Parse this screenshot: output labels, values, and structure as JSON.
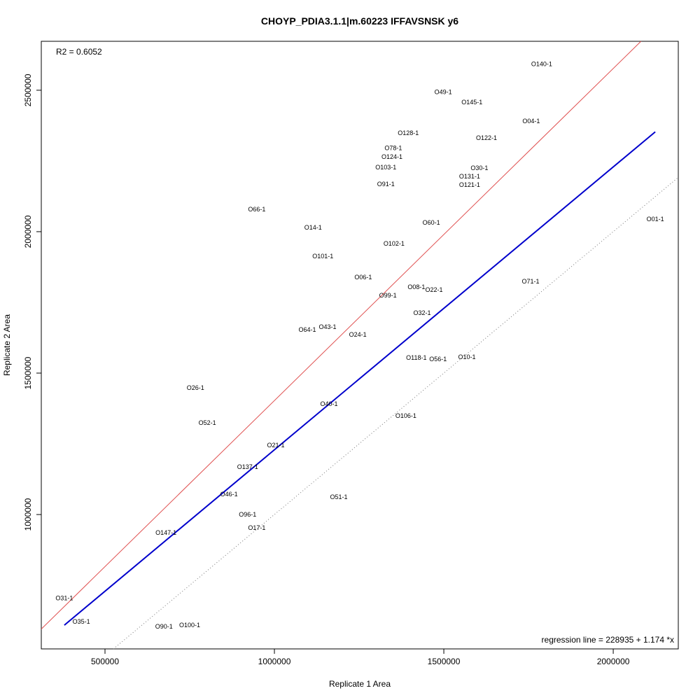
{
  "chart_data": {
    "type": "scatter",
    "title": "CHOYP_PDIA3.1.1|m.60223 IFFAVSNSK y6",
    "xlabel": "Replicate 1 Area",
    "ylabel": "Replicate 2 Area",
    "xlim": [
      312000,
      2192000
    ],
    "ylim": [
      525000,
      2673000
    ],
    "xticks": [
      500000,
      1000000,
      1500000,
      2000000
    ],
    "yticks": [
      1000000,
      1500000,
      2000000,
      2500000
    ],
    "grid": false,
    "annotations": {
      "r2": "R2 = 0.6052",
      "regression": "regression line = 228935 + 1.174 *x"
    },
    "lines": [
      {
        "name": "regression-line",
        "color": "#e05050",
        "intercept": 228935,
        "slope": 1.174,
        "style": "solid"
      },
      {
        "name": "offset-identity-line",
        "color": "#0000cc",
        "intercept": 228935,
        "slope": 1.0,
        "style": "solid",
        "xrange": [
          380000,
          2124000
        ]
      },
      {
        "name": "identity-line",
        "color": "#777777",
        "intercept": 0,
        "slope": 1.0,
        "style": "dotted"
      }
    ],
    "points": [
      {
        "label": "O140-1",
        "x": 1789000,
        "y": 2592000
      },
      {
        "label": "O49-1",
        "x": 1498000,
        "y": 2493000
      },
      {
        "label": "O145-1",
        "x": 1583000,
        "y": 2458000
      },
      {
        "label": "O04-1",
        "x": 1758000,
        "y": 2391000
      },
      {
        "label": "O128-1",
        "x": 1395000,
        "y": 2349000
      },
      {
        "label": "O122-1",
        "x": 1626000,
        "y": 2332000
      },
      {
        "label": "O78-1",
        "x": 1351000,
        "y": 2295000
      },
      {
        "label": "O124-1",
        "x": 1347000,
        "y": 2265000
      },
      {
        "label": "O103-1",
        "x": 1329000,
        "y": 2228000
      },
      {
        "label": "O30-1",
        "x": 1605000,
        "y": 2225000
      },
      {
        "label": "O131-1",
        "x": 1576000,
        "y": 2196000
      },
      {
        "label": "O121-1",
        "x": 1576000,
        "y": 2166000
      },
      {
        "label": "O91-1",
        "x": 1329000,
        "y": 2168000
      },
      {
        "label": "O66-1",
        "x": 948000,
        "y": 2079000
      },
      {
        "label": "O01-1",
        "x": 2124000,
        "y": 2045000
      },
      {
        "label": "O60-1",
        "x": 1463000,
        "y": 2032000
      },
      {
        "label": "O14-1",
        "x": 1114000,
        "y": 2015000
      },
      {
        "label": "O102-1",
        "x": 1353000,
        "y": 1958000
      },
      {
        "label": "O101-1",
        "x": 1143000,
        "y": 1913000
      },
      {
        "label": "O06-1",
        "x": 1262000,
        "y": 1839000
      },
      {
        "label": "O71-1",
        "x": 1756000,
        "y": 1824000
      },
      {
        "label": "O08-1",
        "x": 1419000,
        "y": 1804000
      },
      {
        "label": "O22-1",
        "x": 1471000,
        "y": 1795000
      },
      {
        "label": "O99-1",
        "x": 1335000,
        "y": 1775000
      },
      {
        "label": "O32-1",
        "x": 1436000,
        "y": 1713000
      },
      {
        "label": "O43-1",
        "x": 1157000,
        "y": 1663000
      },
      {
        "label": "O64-1",
        "x": 1097000,
        "y": 1653000
      },
      {
        "label": "O24-1",
        "x": 1246000,
        "y": 1636000
      },
      {
        "label": "O10-1",
        "x": 1568000,
        "y": 1557000
      },
      {
        "label": "O118-1",
        "x": 1419000,
        "y": 1554000
      },
      {
        "label": "O56-1",
        "x": 1483000,
        "y": 1550000
      },
      {
        "label": "O26-1",
        "x": 767000,
        "y": 1448000
      },
      {
        "label": "O40-1",
        "x": 1161000,
        "y": 1391000
      },
      {
        "label": "O106-1",
        "x": 1388000,
        "y": 1349000
      },
      {
        "label": "O52-1",
        "x": 802000,
        "y": 1324000
      },
      {
        "label": "O21-1",
        "x": 1004000,
        "y": 1245000
      },
      {
        "label": "O137-1",
        "x": 921000,
        "y": 1168000
      },
      {
        "label": "O46-1",
        "x": 866000,
        "y": 1072000
      },
      {
        "label": "O51-1",
        "x": 1190000,
        "y": 1062000
      },
      {
        "label": "O96-1",
        "x": 921000,
        "y": 1000000
      },
      {
        "label": "O17-1",
        "x": 948000,
        "y": 953000
      },
      {
        "label": "O147-1",
        "x": 680000,
        "y": 936000
      },
      {
        "label": "O31-1",
        "x": 380000,
        "y": 705000
      },
      {
        "label": "O35-1",
        "x": 430000,
        "y": 621000
      },
      {
        "label": "O100-1",
        "x": 750000,
        "y": 609000
      },
      {
        "label": "O90-1",
        "x": 674000,
        "y": 604000
      }
    ]
  }
}
